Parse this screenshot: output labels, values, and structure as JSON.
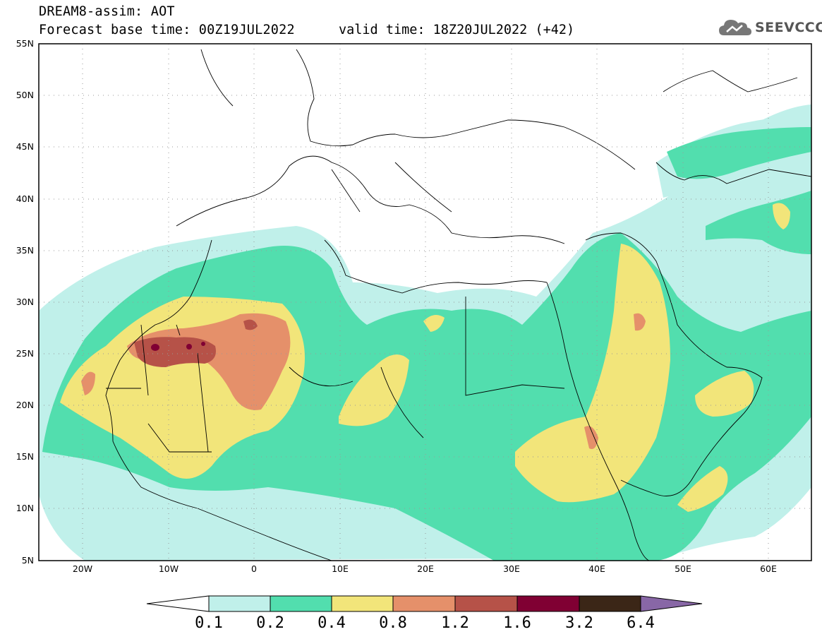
{
  "header": {
    "title_line1": "DREAM8-assim: AOT",
    "title_line2": "Forecast base time: 00Z19JUL2022",
    "valid_time": "valid time: 18Z20JUL2022 (+42)"
  },
  "logo": {
    "text": "SEEVCCC",
    "icon": "cloud-icon"
  },
  "map": {
    "lon_range": [
      -25,
      65
    ],
    "lat_range": [
      5,
      55
    ],
    "lon_ticks": [
      "20W",
      "10W",
      "0",
      "10E",
      "20E",
      "30E",
      "40E",
      "50E",
      "60E"
    ],
    "lat_ticks": [
      "5N",
      "10N",
      "15N",
      "20N",
      "25N",
      "30N",
      "35N",
      "40N",
      "45N",
      "50N",
      "55N"
    ],
    "grid": "dotted"
  },
  "colorbar": {
    "labels": [
      "0.1",
      "0.2",
      "0.4",
      "0.8",
      "1.2",
      "1.6",
      "3.2",
      "6.4"
    ],
    "colors": [
      "#ffffff",
      "#c0f0ea",
      "#52deae",
      "#f2e57a",
      "#e5906a",
      "#b65248",
      "#800033",
      "#3b2617",
      "#8867a6"
    ]
  }
}
